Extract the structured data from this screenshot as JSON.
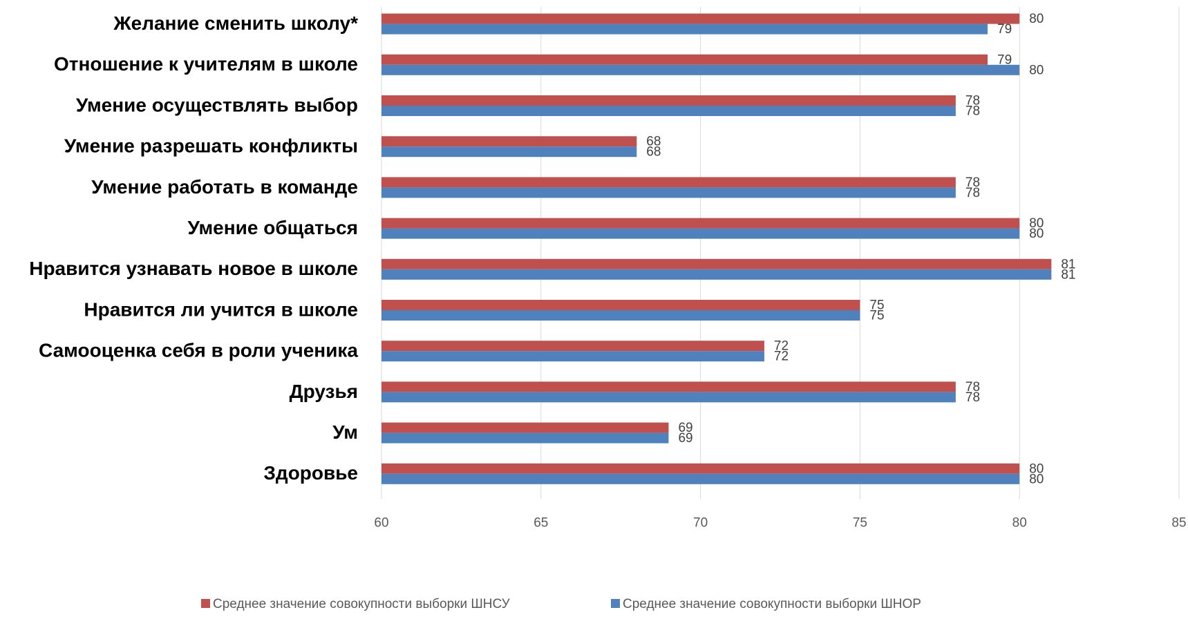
{
  "chart_data": {
    "type": "bar",
    "orientation": "horizontal",
    "categories": [
      "Желание сменить школу*",
      "Отношение к учителям в школе",
      "Умение осуществлять выбор",
      "Умение разрешать конфликты",
      "Умение работать в команде",
      "Умение общаться",
      "Нравится узнавать новое в школе",
      "Нравится ли учится в школе",
      "Самооценка себя в роли ученика",
      "Друзья",
      "Ум",
      "Здоровье"
    ],
    "series": [
      {
        "name": "Среднее значение совокупности выборки ШНСУ",
        "color": "#c0504d",
        "values": [
          80,
          79,
          78,
          68,
          78,
          80,
          81,
          75,
          72,
          78,
          69,
          80
        ]
      },
      {
        "name": "Среднее значение совокупности выборки ШНОР",
        "color": "#4f81bd",
        "values": [
          79,
          80,
          78,
          68,
          78,
          80,
          81,
          75,
          72,
          78,
          69,
          80
        ]
      }
    ],
    "xlim": [
      60,
      85
    ],
    "xticks": [
      60,
      65,
      70,
      75,
      80,
      85
    ],
    "grid": true,
    "data_labels": true,
    "legend_position": "bottom",
    "title": "",
    "xlabel": "",
    "ylabel": ""
  }
}
